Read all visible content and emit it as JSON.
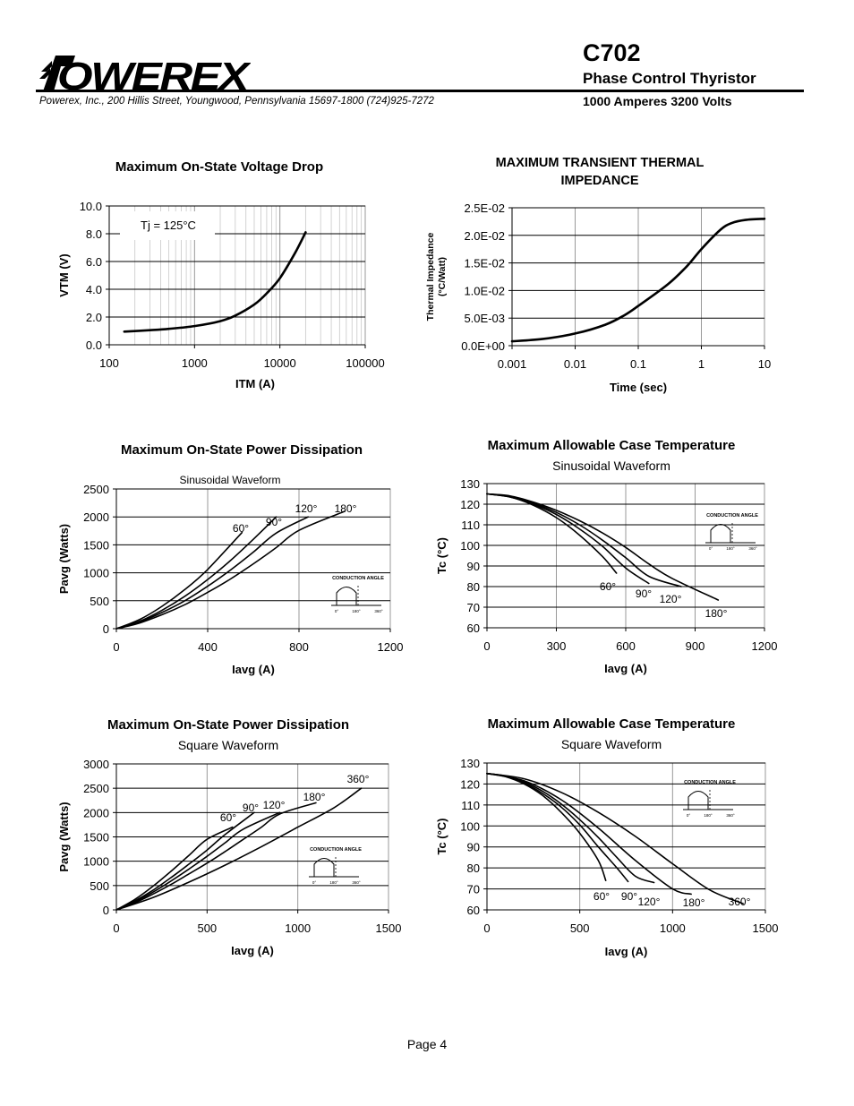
{
  "header": {
    "logo_text": "POWEREX",
    "part_number": "C702",
    "subtitle": "Phase Control Thyristor",
    "rating": "1000 Amperes   3200 Volts",
    "address": "Powerex, Inc., 200  Hillis Street, Youngwood, Pennsylvania 15697-1800  (724)925-7272"
  },
  "footer": {
    "page": "Page 4"
  },
  "inset": {
    "label": "CONDUCTION ANGLE",
    "t0": "0°",
    "t180": "180°",
    "t360": "360°"
  },
  "chart_data": [
    {
      "id": "vtm",
      "type": "line",
      "title": "Maximum On-State Voltage Drop",
      "xlabel": "ITM   (A)",
      "ylabel": "VTM   (V)",
      "x_scale": "log",
      "xlim": [
        100,
        100000
      ],
      "ylim": [
        0,
        10
      ],
      "x_ticks": [
        100,
        1000,
        10000,
        100000
      ],
      "x_tick_labels": [
        "100",
        "1000",
        "10000",
        "100000"
      ],
      "y_ticks": [
        0,
        2,
        4,
        6,
        8,
        10
      ],
      "y_tick_labels": [
        "0.0",
        "2.0",
        "4.0",
        "6.0",
        "8.0",
        "10.0"
      ],
      "grid": true,
      "annotation": "Tj = 125°C",
      "series": [
        {
          "points": [
            [
              150,
              0.95
            ],
            [
              300,
              1.05
            ],
            [
              500,
              1.15
            ],
            [
              1000,
              1.35
            ],
            [
              2000,
              1.7
            ],
            [
              3000,
              2.1
            ],
            [
              5000,
              2.9
            ],
            [
              7000,
              3.7
            ],
            [
              10000,
              4.8
            ],
            [
              15000,
              6.6
            ],
            [
              20000,
              8.1
            ]
          ]
        }
      ]
    },
    {
      "id": "zth",
      "type": "line",
      "title": "MAXIMUM TRANSIENT THERMAL IMPEDANCE",
      "title_lines": [
        "MAXIMUM TRANSIENT THERMAL",
        "IMPEDANCE"
      ],
      "xlabel": "Time   (sec)",
      "ylabel": "Thermal Impedance",
      "ylabel2": "(°C/Watt)",
      "x_scale": "log",
      "xlim": [
        0.001,
        10
      ],
      "ylim": [
        0,
        0.025
      ],
      "x_ticks": [
        0.001,
        0.01,
        0.1,
        1,
        10
      ],
      "x_tick_labels": [
        "0.001",
        "0.01",
        "0.1",
        "1",
        "10"
      ],
      "y_ticks": [
        0,
        0.005,
        0.01,
        0.015,
        0.02,
        0.025
      ],
      "y_tick_labels": [
        "0.0E+00",
        "5.0E-03",
        "1.0E-02",
        "1.5E-02",
        "2.0E-02",
        "2.5E-02"
      ],
      "grid": true,
      "series": [
        {
          "points": [
            [
              0.001,
              0.0008
            ],
            [
              0.003,
              0.0012
            ],
            [
              0.01,
              0.0022
            ],
            [
              0.03,
              0.0038
            ],
            [
              0.06,
              0.0055
            ],
            [
              0.1,
              0.0072
            ],
            [
              0.3,
              0.0112
            ],
            [
              0.6,
              0.0145
            ],
            [
              1,
              0.0175
            ],
            [
              2,
              0.021
            ],
            [
              3,
              0.0222
            ],
            [
              5,
              0.0228
            ],
            [
              10,
              0.023
            ]
          ]
        }
      ]
    },
    {
      "id": "pavg_sine",
      "type": "line",
      "title": "Maximum On-State Power Dissipation",
      "subtitle": "Sinusoidal Waveform",
      "xlabel": "Iavg    (A)",
      "ylabel": "Pavg   (Watts)",
      "xlim": [
        0,
        1200
      ],
      "ylim": [
        0,
        2500
      ],
      "x_ticks": [
        0,
        400,
        800,
        1200
      ],
      "x_tick_labels": [
        "0",
        "400",
        "800",
        "1200"
      ],
      "y_ticks": [
        0,
        500,
        1000,
        1500,
        2000,
        2500
      ],
      "y_tick_labels": [
        "0",
        "500",
        "1000",
        "1500",
        "2000",
        "2500"
      ],
      "grid": true,
      "series": [
        {
          "name": "60°",
          "label": "60°",
          "points": [
            [
              0,
              0
            ],
            [
              100,
              160
            ],
            [
              200,
              400
            ],
            [
              300,
              700
            ],
            [
              400,
              1060
            ],
            [
              550,
              1720
            ]
          ]
        },
        {
          "name": "90°",
          "label": "90°",
          "points": [
            [
              0,
              0
            ],
            [
              100,
              130
            ],
            [
              200,
              330
            ],
            [
              300,
              580
            ],
            [
              400,
              880
            ],
            [
              500,
              1220
            ],
            [
              600,
              1600
            ],
            [
              700,
              2000
            ]
          ]
        },
        {
          "name": "120°",
          "label": "120°",
          "points": [
            [
              0,
              0
            ],
            [
              100,
              115
            ],
            [
              200,
              290
            ],
            [
              300,
              500
            ],
            [
              400,
              760
            ],
            [
              500,
              1050
            ],
            [
              600,
              1370
            ],
            [
              700,
              1710
            ],
            [
              840,
              2000
            ]
          ]
        },
        {
          "name": "180°",
          "label": "180°",
          "points": [
            [
              0,
              0
            ],
            [
              100,
              100
            ],
            [
              200,
              250
            ],
            [
              300,
              430
            ],
            [
              400,
              650
            ],
            [
              500,
              890
            ],
            [
              600,
              1160
            ],
            [
              700,
              1450
            ],
            [
              800,
              1760
            ],
            [
              1000,
              2100
            ]
          ]
        }
      ]
    },
    {
      "id": "tc_sine",
      "type": "line",
      "title": "Maximum Allowable Case Temperature",
      "subtitle": "Sinusoidal Waveform",
      "xlabel": "Iavg    (A)",
      "ylabel": "Tc    (°C)",
      "xlim": [
        0,
        1200
      ],
      "ylim": [
        60,
        130
      ],
      "x_ticks": [
        0,
        300,
        600,
        900,
        1200
      ],
      "x_tick_labels": [
        "0",
        "300",
        "600",
        "900",
        "1200"
      ],
      "y_ticks": [
        60,
        70,
        80,
        90,
        100,
        110,
        120,
        130
      ],
      "y_tick_labels": [
        "60",
        "70",
        "80",
        "90",
        "100",
        "110",
        "120",
        "130"
      ],
      "grid": true,
      "series": [
        {
          "name": "60°",
          "label": "60°",
          "points": [
            [
              0,
              125
            ],
            [
              100,
              123.5
            ],
            [
              200,
              119.5
            ],
            [
              300,
              113.5
            ],
            [
              400,
              105
            ],
            [
              500,
              94.5
            ],
            [
              560,
              86.5
            ]
          ]
        },
        {
          "name": "90°",
          "label": "90°",
          "points": [
            [
              0,
              125
            ],
            [
              100,
              123.5
            ],
            [
              200,
              120
            ],
            [
              300,
              115
            ],
            [
              400,
              108
            ],
            [
              500,
              99.5
            ],
            [
              600,
              89
            ],
            [
              700,
              81.5
            ]
          ]
        },
        {
          "name": "120°",
          "label": "120°",
          "points": [
            [
              0,
              125
            ],
            [
              100,
              123.7
            ],
            [
              200,
              120.5
            ],
            [
              300,
              116
            ],
            [
              400,
              110
            ],
            [
              500,
              102.5
            ],
            [
              600,
              94
            ],
            [
              700,
              85
            ],
            [
              840,
              80
            ]
          ]
        },
        {
          "name": "180°",
          "label": "180°",
          "points": [
            [
              0,
              125
            ],
            [
              100,
              124
            ],
            [
              200,
              121
            ],
            [
              300,
              117
            ],
            [
              400,
              112
            ],
            [
              500,
              106
            ],
            [
              600,
              99
            ],
            [
              700,
              91
            ],
            [
              800,
              84
            ],
            [
              1000,
              73.5
            ]
          ]
        }
      ]
    },
    {
      "id": "pavg_square",
      "type": "line",
      "title": "Maximum On-State Power Dissipation",
      "subtitle": "Square Waveform",
      "xlabel": "Iavg    (A)",
      "ylabel": "Pavg   (Watts)",
      "xlim": [
        0,
        1500
      ],
      "ylim": [
        0,
        3000
      ],
      "x_ticks": [
        0,
        500,
        1000,
        1500
      ],
      "x_tick_labels": [
        "0",
        "500",
        "1000",
        "1500"
      ],
      "y_ticks": [
        0,
        500,
        1000,
        1500,
        2000,
        2500,
        3000
      ],
      "y_tick_labels": [
        "0",
        "500",
        "1000",
        "1500",
        "2000",
        "2500",
        "3000"
      ],
      "grid": true,
      "series": [
        {
          "name": "60°",
          "label": "60°",
          "points": [
            [
              0,
              0
            ],
            [
              100,
              210
            ],
            [
              200,
              480
            ],
            [
              300,
              790
            ],
            [
              400,
              1120
            ],
            [
              500,
              1450
            ],
            [
              640,
              1700
            ]
          ]
        },
        {
          "name": "90°",
          "label": "90°",
          "points": [
            [
              0,
              0
            ],
            [
              100,
              180
            ],
            [
              200,
              400
            ],
            [
              300,
              660
            ],
            [
              400,
              940
            ],
            [
              500,
              1230
            ],
            [
              600,
              1550
            ],
            [
              760,
              2000
            ]
          ]
        },
        {
          "name": "120°",
          "label": "120°",
          "points": [
            [
              0,
              0
            ],
            [
              100,
              160
            ],
            [
              200,
              360
            ],
            [
              300,
              590
            ],
            [
              400,
              840
            ],
            [
              500,
              1100
            ],
            [
              600,
              1380
            ],
            [
              700,
              1660
            ],
            [
              900,
              2000
            ]
          ]
        },
        {
          "name": "180°",
          "label": "180°",
          "points": [
            [
              0,
              0
            ],
            [
              100,
              140
            ],
            [
              200,
              320
            ],
            [
              300,
              520
            ],
            [
              400,
              740
            ],
            [
              500,
              960
            ],
            [
              600,
              1200
            ],
            [
              700,
              1450
            ],
            [
              800,
              1700
            ],
            [
              900,
              1970
            ],
            [
              1100,
              2200
            ]
          ]
        },
        {
          "name": "360°",
          "label": "360°",
          "points": [
            [
              0,
              0
            ],
            [
              200,
              250
            ],
            [
              400,
              570
            ],
            [
              600,
              920
            ],
            [
              800,
              1300
            ],
            [
              1000,
              1700
            ],
            [
              1200,
              2100
            ],
            [
              1350,
              2500
            ]
          ]
        }
      ]
    },
    {
      "id": "tc_square",
      "type": "line",
      "title": "Maximum Allowable Case Temperature",
      "subtitle": "Square Waveform",
      "xlabel": "Iavg    (A)",
      "ylabel": "Tc    (°C)",
      "xlim": [
        0,
        1500
      ],
      "ylim": [
        60,
        130
      ],
      "x_ticks": [
        0,
        500,
        1000,
        1500
      ],
      "x_tick_labels": [
        "0",
        "500",
        "1000",
        "1500"
      ],
      "y_ticks": [
        60,
        70,
        80,
        90,
        100,
        110,
        120,
        130
      ],
      "y_tick_labels": [
        "60",
        "70",
        "80",
        "90",
        "100",
        "110",
        "120",
        "130"
      ],
      "grid": true,
      "series": [
        {
          "name": "60°",
          "label": "60°",
          "points": [
            [
              0,
              125
            ],
            [
              100,
              123.5
            ],
            [
              200,
              120
            ],
            [
              300,
              114.5
            ],
            [
              400,
              106.5
            ],
            [
              500,
              96.5
            ],
            [
              600,
              83.5
            ],
            [
              640,
              74
            ]
          ]
        },
        {
          "name": "90°",
          "label": "90°",
          "points": [
            [
              0,
              125
            ],
            [
              100,
              123.7
            ],
            [
              200,
              120.5
            ],
            [
              300,
              115.5
            ],
            [
              400,
              109
            ],
            [
              500,
              100.5
            ],
            [
              600,
              90
            ],
            [
              700,
              80
            ],
            [
              760,
              73.5
            ]
          ]
        },
        {
          "name": "120°",
          "label": "120°",
          "points": [
            [
              0,
              125
            ],
            [
              100,
              123.8
            ],
            [
              200,
              121
            ],
            [
              300,
              116.5
            ],
            [
              400,
              110.5
            ],
            [
              500,
              103
            ],
            [
              600,
              94.5
            ],
            [
              700,
              85
            ],
            [
              800,
              76
            ],
            [
              900,
              73
            ]
          ]
        },
        {
          "name": "180°",
          "label": "180°",
          "points": [
            [
              0,
              125
            ],
            [
              200,
              121.5
            ],
            [
              400,
              112.5
            ],
            [
              600,
              99
            ],
            [
              800,
              83.5
            ],
            [
              1000,
              70
            ],
            [
              1100,
              67.5
            ]
          ]
        },
        {
          "name": "360°",
          "label": "360°",
          "points": [
            [
              0,
              125
            ],
            [
              200,
              122.5
            ],
            [
              400,
              116
            ],
            [
              600,
              106.5
            ],
            [
              800,
              95
            ],
            [
              1000,
              82
            ],
            [
              1200,
              69.5
            ],
            [
              1380,
              63
            ]
          ]
        }
      ]
    }
  ]
}
